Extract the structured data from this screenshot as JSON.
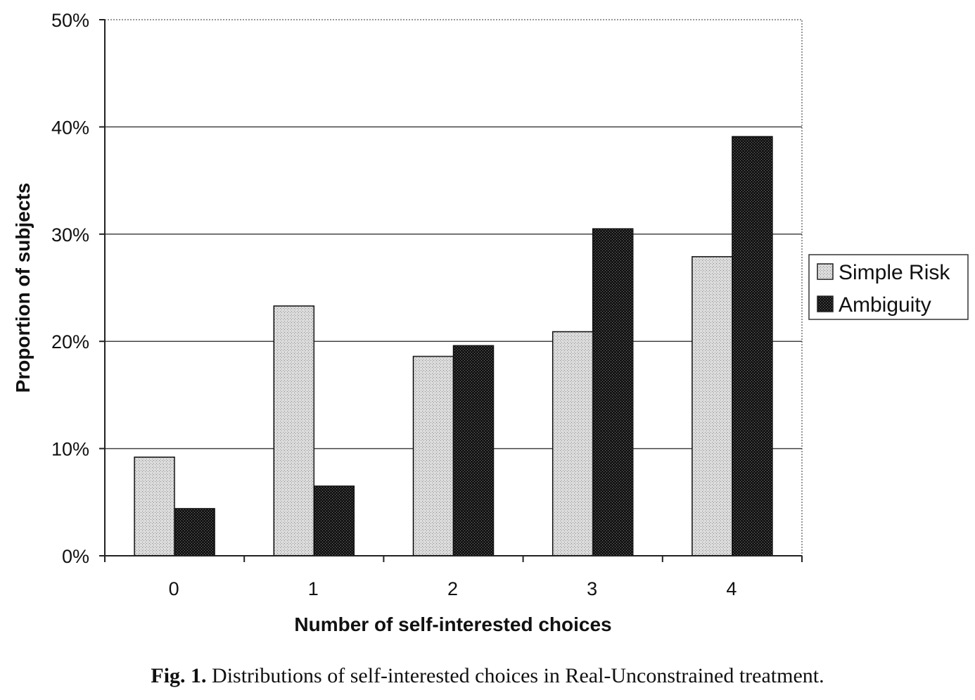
{
  "chart_data": {
    "type": "bar",
    "categories": [
      "0",
      "1",
      "2",
      "3",
      "4"
    ],
    "series": [
      {
        "name": "Simple Risk",
        "values": [
          9.2,
          23.3,
          18.6,
          20.9,
          27.9
        ],
        "pattern": "light-crosshatch",
        "color": "#d8d8d8"
      },
      {
        "name": "Ambiguity",
        "values": [
          4.4,
          6.5,
          19.6,
          30.5,
          39.1
        ],
        "pattern": "dark-crosshatch",
        "color": "#1e1e1e"
      }
    ],
    "xlabel": "Number of self-interested choices",
    "ylabel": "Proportion of subjects",
    "ylim": [
      0,
      50
    ],
    "yticks": [
      "0%",
      "10%",
      "20%",
      "30%",
      "40%",
      "50%"
    ],
    "grid": "horizontal",
    "legend_position": "right"
  },
  "caption": {
    "label": "Fig. 1.",
    "text": "Distributions of self-interested choices in Real-Unconstrained treatment."
  }
}
